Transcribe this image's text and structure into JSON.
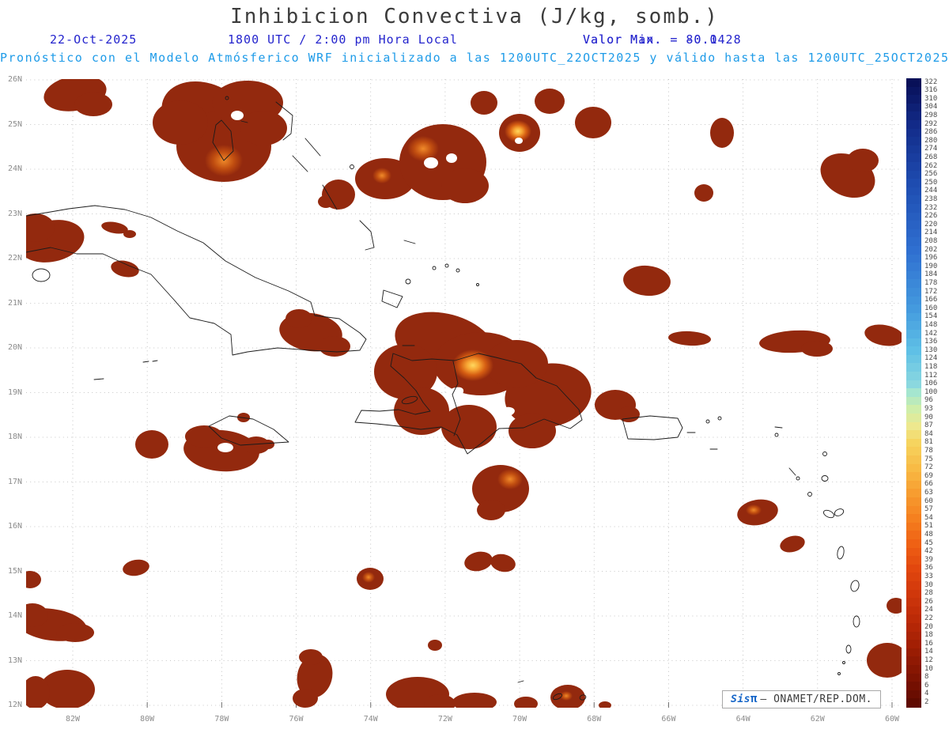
{
  "title": "Inhibicion Convectiva (J/kg, somb.)",
  "header": {
    "date": "22-Oct-2025",
    "time": "1800 UTC / 2:00 pm Hora Local",
    "min_label": "Valor Min. = -0.1",
    "max_label": "Valor Max. = 80.0428",
    "forecast": "Pronóstico con el Modelo Atmósferico WRF inicializado a las 1200UTC_22OCT2025 y válido hasta las  1200UTC_25OCT2025"
  },
  "axes": {
    "lat_labels": [
      "26N",
      "25N",
      "24N",
      "23N",
      "22N",
      "21N",
      "20N",
      "19N",
      "18N",
      "17N",
      "16N",
      "15N",
      "14N",
      "13N",
      "12N"
    ],
    "lon_labels": [
      "82W",
      "80W",
      "78W",
      "76W",
      "74W",
      "72W",
      "70W",
      "68W",
      "66W",
      "64W",
      "62W",
      "60W"
    ]
  },
  "colorbar": {
    "values": [
      322,
      316,
      310,
      304,
      298,
      292,
      286,
      280,
      274,
      268,
      262,
      256,
      250,
      244,
      238,
      232,
      226,
      220,
      214,
      208,
      202,
      196,
      190,
      184,
      178,
      172,
      166,
      160,
      154,
      148,
      142,
      136,
      130,
      124,
      118,
      112,
      106,
      100,
      96,
      93,
      90,
      87,
      84,
      81,
      78,
      75,
      72,
      69,
      66,
      63,
      60,
      57,
      54,
      51,
      48,
      45,
      42,
      39,
      36,
      33,
      30,
      28,
      26,
      24,
      22,
      20,
      18,
      16,
      14,
      12,
      10,
      8,
      6,
      4,
      2
    ],
    "stops": [
      [
        0.0,
        "#081058"
      ],
      [
        0.068,
        "#122a88"
      ],
      [
        0.162,
        "#1e4cb0"
      ],
      [
        0.27,
        "#2f6fd0"
      ],
      [
        0.365,
        "#449ade"
      ],
      [
        0.432,
        "#5fc0e6"
      ],
      [
        0.486,
        "#8ad8e0"
      ],
      [
        0.5,
        "#a5e6cf"
      ],
      [
        0.527,
        "#cfeeaa"
      ],
      [
        0.554,
        "#ede88e"
      ],
      [
        0.581,
        "#f6d45f"
      ],
      [
        0.622,
        "#f8bb45"
      ],
      [
        0.662,
        "#f79d30"
      ],
      [
        0.703,
        "#f5801f"
      ],
      [
        0.743,
        "#ef6114"
      ],
      [
        0.784,
        "#e2470e"
      ],
      [
        0.824,
        "#d0370b"
      ],
      [
        0.865,
        "#bc2a07"
      ],
      [
        0.905,
        "#a31f04"
      ],
      [
        0.946,
        "#871602"
      ],
      [
        0.973,
        "#740f01"
      ],
      [
        1.0,
        "#5f0a00"
      ]
    ]
  },
  "logo": {
    "brand": "Sis",
    "pi": "π",
    "org": "— ONAMET/REP.DOM."
  },
  "colors": {
    "header_blue": "#2424cd",
    "header_cyan": "#1e9be8",
    "shading_base": "#93290e"
  }
}
